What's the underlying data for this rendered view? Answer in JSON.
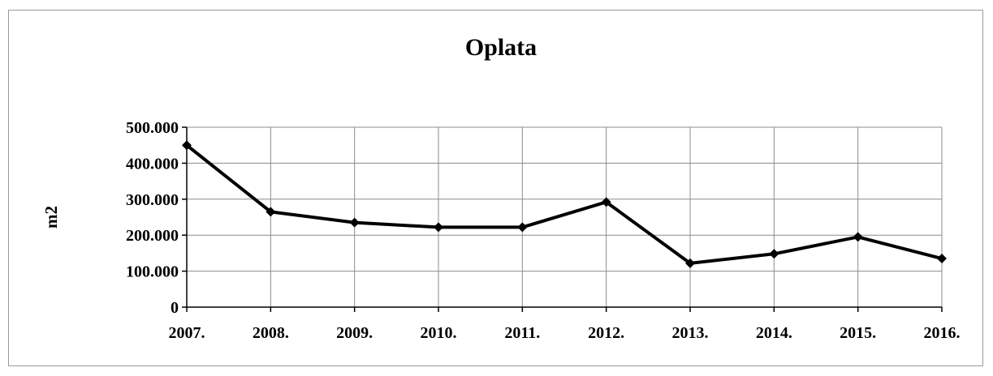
{
  "chart_data": {
    "type": "line",
    "title": "Oplata",
    "xlabel": "",
    "ylabel": "m2",
    "categories": [
      "2007.",
      "2008.",
      "2009.",
      "2010.",
      "2011.",
      "2012.",
      "2013.",
      "2014.",
      "2015.",
      "2016."
    ],
    "series": [
      {
        "values": [
          450000,
          265000,
          235000,
          222000,
          222000,
          292000,
          122000,
          148000,
          195000,
          135000
        ]
      }
    ],
    "ylim": [
      0,
      500000
    ],
    "yticks": [
      0,
      100000,
      200000,
      300000,
      400000,
      500000
    ],
    "ytick_labels": [
      "0",
      "100.000",
      "200.000",
      "300.000",
      "400.000",
      "500.000"
    ],
    "grid": true,
    "legend": "none",
    "line_color": "#000000",
    "marker": "diamond"
  }
}
